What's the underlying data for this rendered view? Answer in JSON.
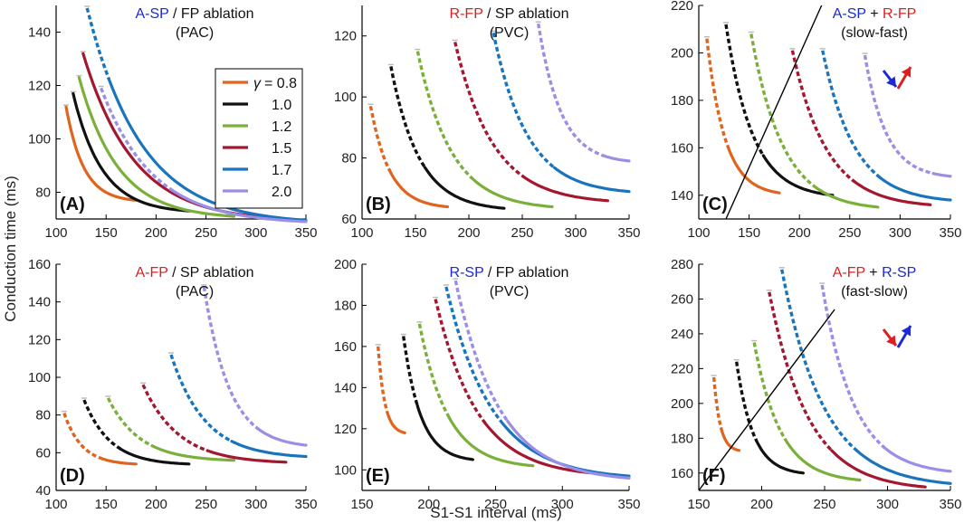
{
  "figure": {
    "ylabel": "Conduction time (ms)",
    "xlabel": "S1-S1 interval (ms)",
    "colors": {
      "0.8": "#e0641e",
      "1.0": "#111111",
      "1.2": "#7ab03a",
      "1.5": "#a3172f",
      "1.7": "#1a74bd",
      "2.0": "#9a8ee6",
      "blue_text": "#1a2ad6",
      "red_text": "#dd1e1e"
    }
  },
  "legend": {
    "symbol": "γ",
    "entries": [
      {
        "label": "= 0.8",
        "key": "0.8"
      },
      {
        "label": "1.0",
        "key": "1.0"
      },
      {
        "label": "1.2",
        "key": "1.2"
      },
      {
        "label": "1.5",
        "key": "1.5"
      },
      {
        "label": "1.7",
        "key": "1.7"
      },
      {
        "label": "2.0",
        "key": "2.0"
      }
    ]
  },
  "chart_data": [
    {
      "id": "A",
      "type": "line",
      "panel_label": "(A)",
      "title": [
        {
          "text": "A-SP",
          "color": "blue"
        },
        {
          "text": " / FP ablation",
          "color": "black"
        }
      ],
      "subtitle": "(PAC)",
      "xlim": [
        100,
        350
      ],
      "ylim": [
        70,
        150
      ],
      "xticks": [
        100,
        150,
        200,
        250,
        300,
        350
      ],
      "yticks": [
        80,
        100,
        120,
        140
      ],
      "series": [
        {
          "gamma": "0.8",
          "x0": 110,
          "x1": 180,
          "y0": 112,
          "y1": 77,
          "dash_until": 0
        },
        {
          "gamma": "1.0",
          "x0": 117,
          "x1": 233,
          "y0": 117,
          "y1": 73,
          "dash_until": 0
        },
        {
          "gamma": "1.2",
          "x0": 123,
          "x1": 278,
          "y0": 123,
          "y1": 71,
          "dash_until": 0
        },
        {
          "gamma": "1.5",
          "x0": 127,
          "x1": 330,
          "y0": 132,
          "y1": 70,
          "dash_until": 0
        },
        {
          "gamma": "1.7",
          "x0": 131,
          "x1": 350,
          "y0": 149,
          "y1": 69.5,
          "dash_until": 0.1
        },
        {
          "gamma": "2.0",
          "x0": 145,
          "x1": 350,
          "y0": 119,
          "y1": 69,
          "dash_until": 0.35
        }
      ]
    },
    {
      "id": "B",
      "type": "line",
      "panel_label": "(B)",
      "title": [
        {
          "text": "R-FP",
          "color": "red"
        },
        {
          "text": " / SP ablation",
          "color": "black"
        }
      ],
      "subtitle": "(PVC)",
      "xlim": [
        100,
        350
      ],
      "ylim": [
        60,
        130
      ],
      "xticks": [
        100,
        150,
        200,
        250,
        300,
        350
      ],
      "yticks": [
        60,
        80,
        100,
        120
      ],
      "series": [
        {
          "gamma": "0.8",
          "x0": 108,
          "x1": 180,
          "y0": 97,
          "y1": 64,
          "dash_until": 0.25
        },
        {
          "gamma": "1.0",
          "x0": 127,
          "x1": 233,
          "y0": 110,
          "y1": 63.5,
          "dash_until": 0.3
        },
        {
          "gamma": "1.2",
          "x0": 152,
          "x1": 278,
          "y0": 115,
          "y1": 64,
          "dash_until": 0.4
        },
        {
          "gamma": "1.5",
          "x0": 187,
          "x1": 330,
          "y0": 118,
          "y1": 66,
          "dash_until": 0.45
        },
        {
          "gamma": "1.7",
          "x0": 223,
          "x1": 350,
          "y0": 121,
          "y1": 69,
          "dash_until": 0.45
        },
        {
          "gamma": "2.0",
          "x0": 265,
          "x1": 350,
          "y0": 124,
          "y1": 79,
          "dash_until": 0.75
        }
      ]
    },
    {
      "id": "C",
      "type": "line",
      "panel_label": "(C)",
      "title": [
        {
          "text": "A-SP",
          "color": "blue"
        },
        {
          "text": " + ",
          "color": "black"
        },
        {
          "text": "R-FP",
          "color": "red"
        }
      ],
      "subtitle": "(slow-fast)",
      "xlim": [
        100,
        350
      ],
      "ylim": [
        130,
        220
      ],
      "xticks": [
        100,
        150,
        200,
        250,
        300,
        350
      ],
      "yticks": [
        140,
        160,
        180,
        200,
        220
      ],
      "line_from": [
        127,
        130
      ],
      "line_to": [
        222,
        220
      ],
      "arrows": "slow-fast",
      "series": [
        {
          "gamma": "0.8",
          "x0": 108,
          "x1": 180,
          "y0": 206,
          "y1": 141,
          "dash_until": 0.3
        },
        {
          "gamma": "1.0",
          "x0": 127,
          "x1": 233,
          "y0": 212,
          "y1": 140,
          "dash_until": 0.35
        },
        {
          "gamma": "1.2",
          "x0": 152,
          "x1": 278,
          "y0": 208,
          "y1": 135,
          "dash_until": 0.5
        },
        {
          "gamma": "1.5",
          "x0": 193,
          "x1": 330,
          "y0": 201,
          "y1": 136,
          "dash_until": 0.45
        },
        {
          "gamma": "1.7",
          "x0": 223,
          "x1": 350,
          "y0": 201,
          "y1": 138,
          "dash_until": 0.45
        },
        {
          "gamma": "2.0",
          "x0": 265,
          "x1": 350,
          "y0": 199,
          "y1": 148,
          "dash_until": 0.8
        }
      ]
    },
    {
      "id": "D",
      "type": "line",
      "panel_label": "(D)",
      "title": [
        {
          "text": "A-FP",
          "color": "red"
        },
        {
          "text": " / SP ablation",
          "color": "black"
        }
      ],
      "subtitle": "(PAC)",
      "xlim": [
        100,
        350
      ],
      "ylim": [
        40,
        160
      ],
      "xticks": [
        100,
        150,
        200,
        250,
        300,
        350
      ],
      "yticks": [
        40,
        60,
        80,
        100,
        120,
        140,
        160
      ],
      "series": [
        {
          "gamma": "0.8",
          "x0": 108,
          "x1": 180,
          "y0": 81,
          "y1": 54,
          "dash_until": 0.55
        },
        {
          "gamma": "1.0",
          "x0": 128,
          "x1": 233,
          "y0": 88,
          "y1": 54,
          "dash_until": 0.35
        },
        {
          "gamma": "1.2",
          "x0": 152,
          "x1": 278,
          "y0": 89,
          "y1": 56,
          "dash_until": 0.35
        },
        {
          "gamma": "1.5",
          "x0": 187,
          "x1": 330,
          "y0": 96,
          "y1": 55,
          "dash_until": 0.45
        },
        {
          "gamma": "1.7",
          "x0": 215,
          "x1": 350,
          "y0": 112,
          "y1": 58,
          "dash_until": 0.45
        },
        {
          "gamma": "2.0",
          "x0": 248,
          "x1": 350,
          "y0": 148,
          "y1": 64,
          "dash_until": 0.55
        }
      ]
    },
    {
      "id": "E",
      "type": "line",
      "panel_label": "(E)",
      "title": [
        {
          "text": "R-SP",
          "color": "blue"
        },
        {
          "text": " / FP ablation",
          "color": "black"
        }
      ],
      "subtitle": "(PVC)",
      "xlim": [
        150,
        350
      ],
      "ylim": [
        90,
        200
      ],
      "xticks": [
        150,
        200,
        250,
        300,
        350
      ],
      "yticks": [
        100,
        120,
        140,
        160,
        180,
        200
      ],
      "series": [
        {
          "gamma": "0.8",
          "x0": 162,
          "x1": 182,
          "y0": 160,
          "y1": 118,
          "dash_until": 0.35
        },
        {
          "gamma": "1.0",
          "x0": 181,
          "x1": 233,
          "y0": 165,
          "y1": 105,
          "dash_until": 0.2
        },
        {
          "gamma": "1.2",
          "x0": 193,
          "x1": 278,
          "y0": 171,
          "y1": 102,
          "dash_until": 0.25
        },
        {
          "gamma": "1.5",
          "x0": 205,
          "x1": 330,
          "y0": 183,
          "y1": 98,
          "dash_until": 0.3
        },
        {
          "gamma": "1.7",
          "x0": 213,
          "x1": 350,
          "y0": 189,
          "y1": 97,
          "dash_until": 0.3
        },
        {
          "gamma": "2.0",
          "x0": 220,
          "x1": 350,
          "y0": 192,
          "y1": 96,
          "dash_until": 0.3
        }
      ]
    },
    {
      "id": "F",
      "type": "line",
      "panel_label": "(F)",
      "title": [
        {
          "text": "A-FP",
          "color": "red"
        },
        {
          "text": " + ",
          "color": "black"
        },
        {
          "text": "R-SP",
          "color": "blue"
        }
      ],
      "subtitle": "(fast-slow)",
      "xlim": [
        150,
        350
      ],
      "ylim": [
        150,
        280
      ],
      "xticks": [
        150,
        200,
        250,
        300,
        350
      ],
      "yticks": [
        160,
        180,
        200,
        220,
        240,
        260,
        280
      ],
      "line_from": [
        150,
        150
      ],
      "line_to": [
        258,
        254
      ],
      "arrows": "fast-slow",
      "series": [
        {
          "gamma": "0.8",
          "x0": 162,
          "x1": 182,
          "y0": 215,
          "y1": 173,
          "dash_until": 0.3
        },
        {
          "gamma": "1.0",
          "x0": 180,
          "x1": 233,
          "y0": 224,
          "y1": 160,
          "dash_until": 0.3
        },
        {
          "gamma": "1.2",
          "x0": 194,
          "x1": 278,
          "y0": 235,
          "y1": 156,
          "dash_until": 0.3
        },
        {
          "gamma": "1.5",
          "x0": 206,
          "x1": 330,
          "y0": 264,
          "y1": 152,
          "dash_until": 0.4
        },
        {
          "gamma": "1.7",
          "x0": 216,
          "x1": 350,
          "y0": 277,
          "y1": 154,
          "dash_until": 0.45
        },
        {
          "gamma": "2.0",
          "x0": 248,
          "x1": 350,
          "y0": 268,
          "y1": 161,
          "dash_until": 0.5
        }
      ]
    }
  ]
}
